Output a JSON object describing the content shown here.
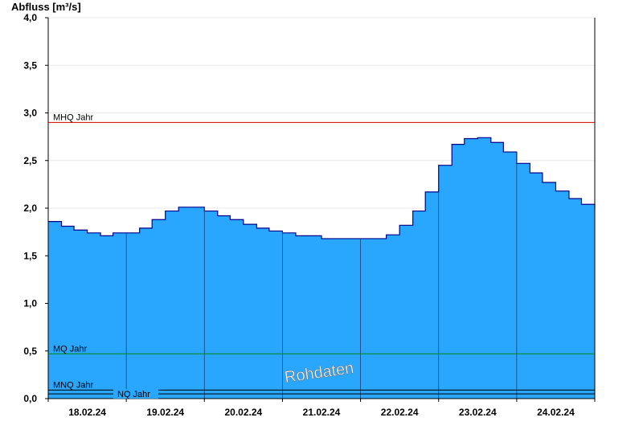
{
  "chart_data": {
    "type": "area",
    "ylabel": "Abfluss [m³/s]",
    "watermark": "Rohdaten",
    "ylim": [
      0,
      4.0
    ],
    "yticks": [
      "0,0",
      "0,5",
      "1,0",
      "1,5",
      "2,0",
      "2,5",
      "3,0",
      "3,5",
      "4,0"
    ],
    "xlim_days": [
      0,
      7
    ],
    "day_labels": [
      "18.02.24",
      "19.02.24",
      "20.02.24",
      "21.02.24",
      "22.02.24",
      "23.02.24",
      "24.02.24"
    ],
    "grid": true,
    "colors": {
      "area": "#29a7ff",
      "line": "#00008b",
      "mhq": "#cc0000",
      "mq": "#008800",
      "nq": "#000000"
    },
    "reference_lines": [
      {
        "label": "MHQ Jahr",
        "value": 2.9
      },
      {
        "label": "MQ Jahr",
        "value": 0.47
      },
      {
        "label": "MNQ Jahr",
        "value": 0.09
      },
      {
        "label": "NQ Jahr",
        "value": 0.05
      }
    ],
    "series": [
      {
        "x": [
          0.0,
          0.17,
          0.33,
          0.5,
          0.67,
          0.83,
          1.0,
          1.17,
          1.33,
          1.5,
          1.67,
          1.83,
          2.0,
          2.17,
          2.33,
          2.5,
          2.67,
          2.83,
          3.0,
          3.17,
          3.33,
          3.5,
          3.67,
          3.83,
          4.0,
          4.17,
          4.33,
          4.5,
          4.67,
          4.83,
          5.0,
          5.17,
          5.33,
          5.5,
          5.67,
          5.83,
          6.0,
          6.17,
          6.33,
          6.5,
          6.67,
          6.83,
          7.0
        ],
        "y": [
          1.86,
          1.81,
          1.77,
          1.74,
          1.71,
          1.74,
          1.74,
          1.79,
          1.88,
          1.97,
          2.01,
          2.01,
          1.97,
          1.92,
          1.88,
          1.83,
          1.79,
          1.76,
          1.74,
          1.71,
          1.71,
          1.68,
          1.68,
          1.68,
          1.68,
          1.68,
          1.72,
          1.82,
          1.97,
          2.17,
          2.45,
          2.67,
          2.73,
          2.74,
          2.69,
          2.59,
          2.47,
          2.37,
          2.27,
          2.18,
          2.1,
          2.04,
          1.99
        ]
      }
    ]
  }
}
